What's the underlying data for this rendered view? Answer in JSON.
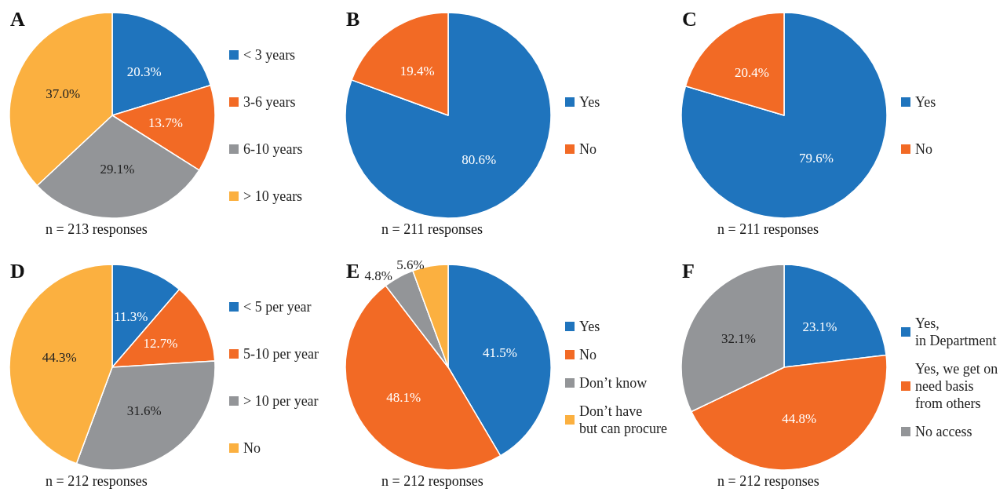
{
  "chart_data": [
    {
      "type": "pie",
      "title": "A",
      "categories": [
        "< 3 years",
        "3-6 years",
        "6-10 years",
        "> 10 years"
      ],
      "values": [
        20.3,
        13.7,
        29.1,
        37.0
      ],
      "value_labels": [
        "20.3%",
        "13.7%",
        "29.1%",
        "37.0%"
      ],
      "colors": [
        "#1f74bd",
        "#f26a25",
        "#939598",
        "#fbb040"
      ],
      "legend": "right",
      "annotations": [
        "n = 213 responses"
      ]
    },
    {
      "type": "pie",
      "title": "B",
      "categories": [
        "Yes",
        "No"
      ],
      "values": [
        80.6,
        19.4
      ],
      "value_labels": [
        "80.6%",
        "19.4%"
      ],
      "colors": [
        "#1f74bd",
        "#f26a25"
      ],
      "legend": "right",
      "annotations": [
        "n = 211 responses"
      ]
    },
    {
      "type": "pie",
      "title": "C",
      "categories": [
        "Yes",
        "No"
      ],
      "values": [
        79.6,
        20.4
      ],
      "value_labels": [
        "79.6%",
        "20.4%"
      ],
      "colors": [
        "#1f74bd",
        "#f26a25"
      ],
      "legend": "right",
      "annotations": [
        "n = 211 responses"
      ]
    },
    {
      "type": "pie",
      "title": "D",
      "categories": [
        "< 5 per year",
        "5-10 per year",
        "> 10 per year",
        "No"
      ],
      "values": [
        11.3,
        12.7,
        31.6,
        44.3
      ],
      "value_labels": [
        "11.3%",
        "12.7%",
        "31.6%",
        "44.3%"
      ],
      "colors": [
        "#1f74bd",
        "#f26a25",
        "#939598",
        "#fbb040"
      ],
      "legend": "right",
      "annotations": [
        "n = 212 responses"
      ]
    },
    {
      "type": "pie",
      "title": "E",
      "categories": [
        "Yes",
        "No",
        "Don’t know",
        "Don’t have\nbut can procure"
      ],
      "values": [
        41.5,
        48.1,
        4.8,
        5.6
      ],
      "value_labels": [
        "41.5%",
        "48.1%",
        "4.8%",
        "5.6%"
      ],
      "colors": [
        "#1f74bd",
        "#f26a25",
        "#939598",
        "#fbb040"
      ],
      "legend": "right",
      "annotations": [
        "n = 212 responses"
      ]
    },
    {
      "type": "pie",
      "title": "F",
      "categories": [
        "Yes,\nin Department",
        "Yes, we get on\nneed basis\nfrom others",
        "No access"
      ],
      "values": [
        23.1,
        44.8,
        32.1
      ],
      "value_labels": [
        "23.1%",
        "44.8%",
        "32.1%"
      ],
      "colors": [
        "#1f74bd",
        "#f26a25",
        "#939598"
      ],
      "legend": "right",
      "annotations": [
        "n = 212 responses"
      ]
    }
  ]
}
